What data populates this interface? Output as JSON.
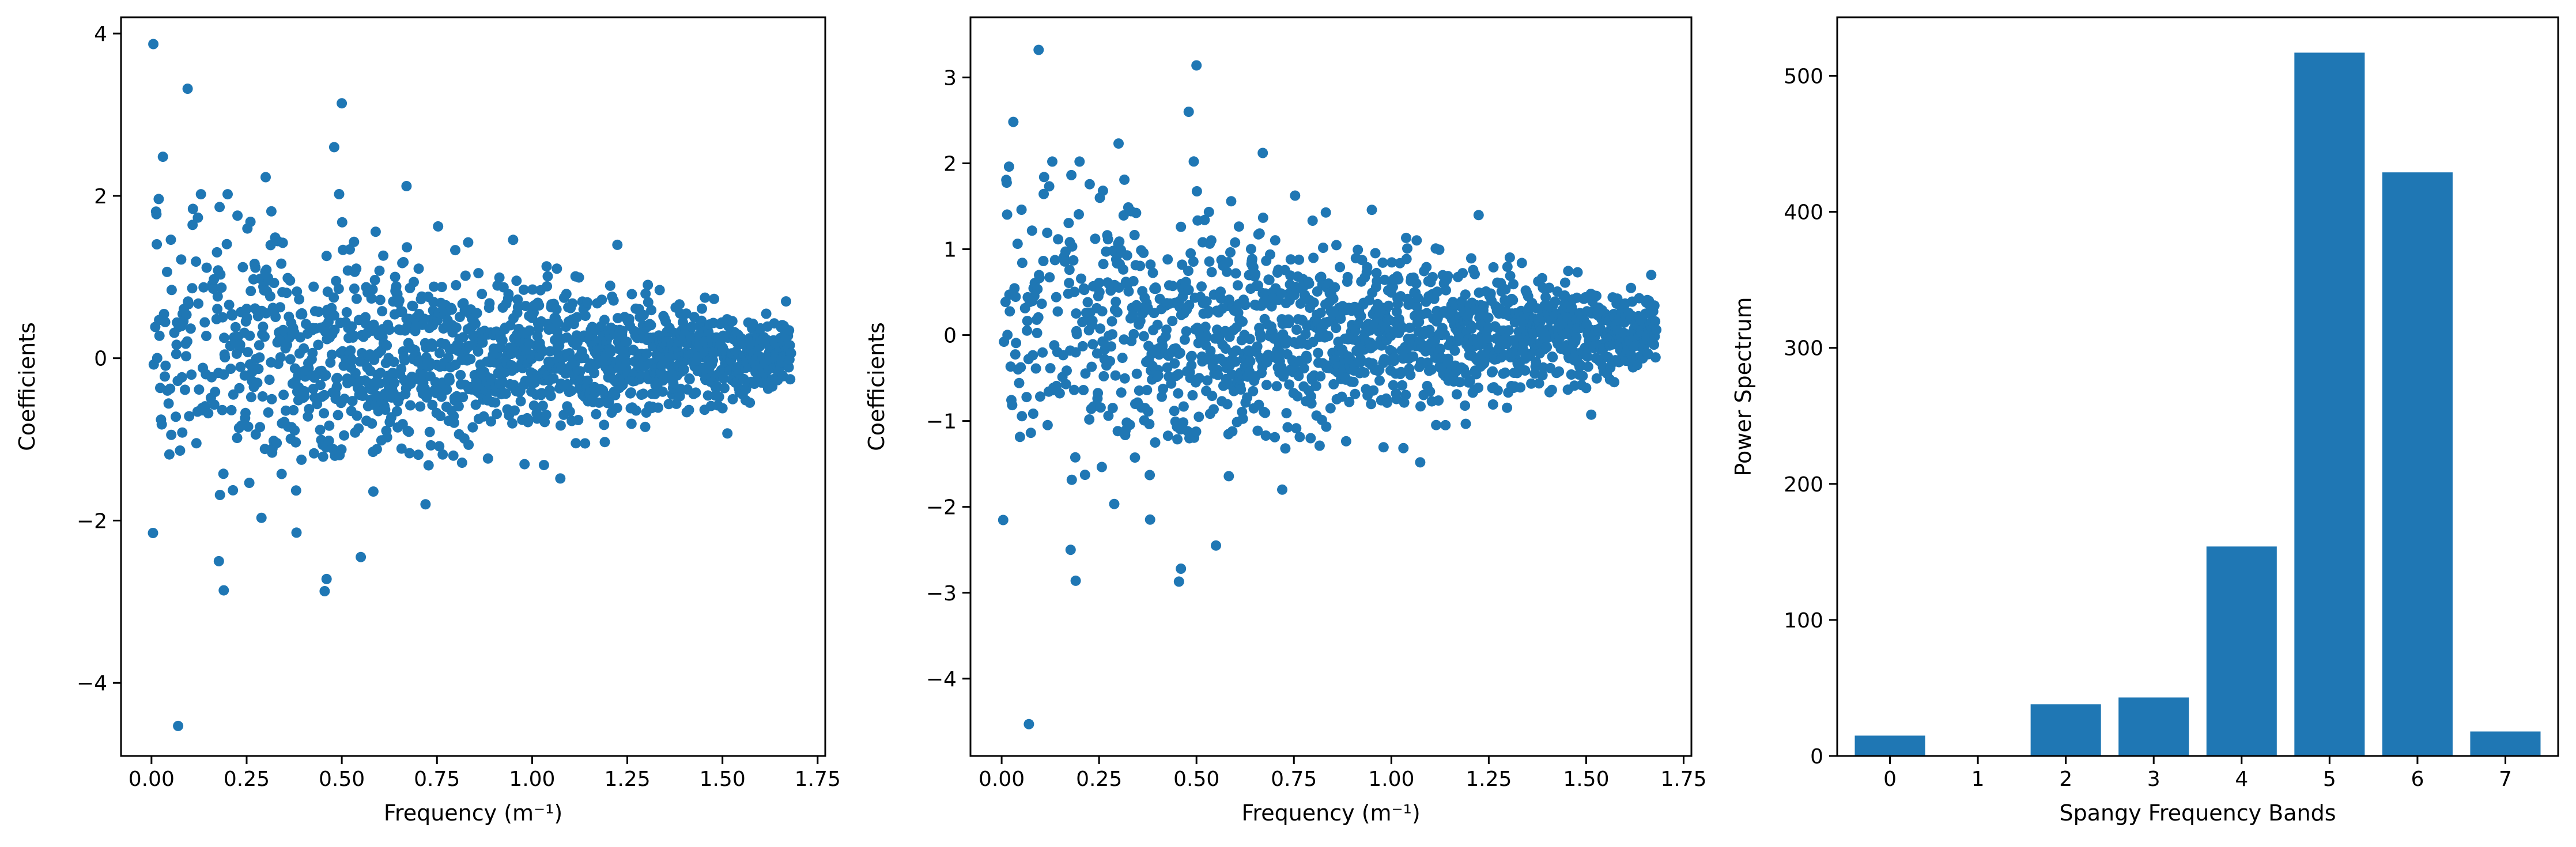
{
  "colors": {
    "series": "#1f77b4",
    "axis": "#000000",
    "background": "#ffffff"
  },
  "chart_data": [
    {
      "type": "scatter",
      "name": "left",
      "xlabel": "Frequency (m⁻¹)",
      "ylabel": "Coefficients",
      "xlim": [
        -0.08,
        1.77
      ],
      "ylim": [
        -4.9,
        4.2
      ],
      "xticks": [
        0.0,
        0.25,
        0.5,
        0.75,
        1.0,
        1.25,
        1.5,
        1.75
      ],
      "xtick_labels": [
        "0.00",
        "0.25",
        "0.50",
        "0.75",
        "1.00",
        "1.25",
        "1.50",
        "1.75"
      ],
      "yticks": [
        -4,
        -2,
        0,
        2,
        4
      ],
      "ytick_labels": [
        "−4",
        "−2",
        "0",
        "2",
        "4"
      ],
      "generator": {
        "x_max": 1.68,
        "x_step": 0.001,
        "spread_at_zero": 1.2,
        "spread_at_max": 0.28
      },
      "points": [
        {
          "x": 0.005,
          "y": 3.87
        },
        {
          "x": 0.095,
          "y": 3.32
        },
        {
          "x": 0.5,
          "y": 3.14
        },
        {
          "x": 0.07,
          "y": -4.53
        },
        {
          "x": 0.48,
          "y": 2.6
        },
        {
          "x": 0.19,
          "y": -2.86
        },
        {
          "x": 0.46,
          "y": -2.72
        },
        {
          "x": 0.455,
          "y": -2.87
        },
        {
          "x": 0.55,
          "y": -2.45
        },
        {
          "x": 0.3,
          "y": 2.23
        },
        {
          "x": 0.67,
          "y": 2.12
        },
        {
          "x": 0.13,
          "y": 2.02
        },
        {
          "x": 0.2,
          "y": 2.02
        }
      ]
    },
    {
      "type": "scatter",
      "name": "middle",
      "xlabel": "Frequency (m⁻¹)",
      "ylabel": "Coefficients",
      "xlim": [
        -0.08,
        1.77
      ],
      "ylim": [
        -4.9,
        3.7
      ],
      "xticks": [
        0.0,
        0.25,
        0.5,
        0.75,
        1.0,
        1.25,
        1.5,
        1.75
      ],
      "xtick_labels": [
        "0.00",
        "0.25",
        "0.50",
        "0.75",
        "1.00",
        "1.25",
        "1.50",
        "1.75"
      ],
      "yticks": [
        -4,
        -3,
        -2,
        -1,
        0,
        1,
        2,
        3
      ],
      "ytick_labels": [
        "−4",
        "−3",
        "−2",
        "−1",
        "0",
        "1",
        "2",
        "3"
      ],
      "generator": {
        "x_max": 1.68,
        "x_step": 0.001,
        "spread_at_zero": 1.2,
        "spread_at_max": 0.28
      },
      "points": [
        {
          "x": 0.095,
          "y": 3.32
        },
        {
          "x": 0.5,
          "y": 3.14
        },
        {
          "x": 0.48,
          "y": 2.6
        },
        {
          "x": 0.07,
          "y": -4.53
        },
        {
          "x": 0.19,
          "y": -2.86
        },
        {
          "x": 0.46,
          "y": -2.72
        },
        {
          "x": 0.455,
          "y": -2.87
        },
        {
          "x": 0.55,
          "y": -2.45
        },
        {
          "x": 0.3,
          "y": 2.23
        },
        {
          "x": 0.67,
          "y": 2.12
        },
        {
          "x": 0.13,
          "y": 2.02
        },
        {
          "x": 0.2,
          "y": 2.02
        }
      ]
    },
    {
      "type": "bar",
      "name": "right",
      "xlabel": "Spangy Frequency Bands",
      "ylabel": "Power Spectrum",
      "categories": [
        "0",
        "1",
        "2",
        "3",
        "4",
        "5",
        "6",
        "7"
      ],
      "values": [
        15,
        0,
        38,
        43,
        154,
        517,
        429,
        18
      ],
      "ylim": [
        0,
        543
      ],
      "yticks": [
        0,
        100,
        200,
        300,
        400,
        500
      ],
      "ytick_labels": [
        "0",
        "100",
        "200",
        "300",
        "400",
        "500"
      ]
    }
  ]
}
